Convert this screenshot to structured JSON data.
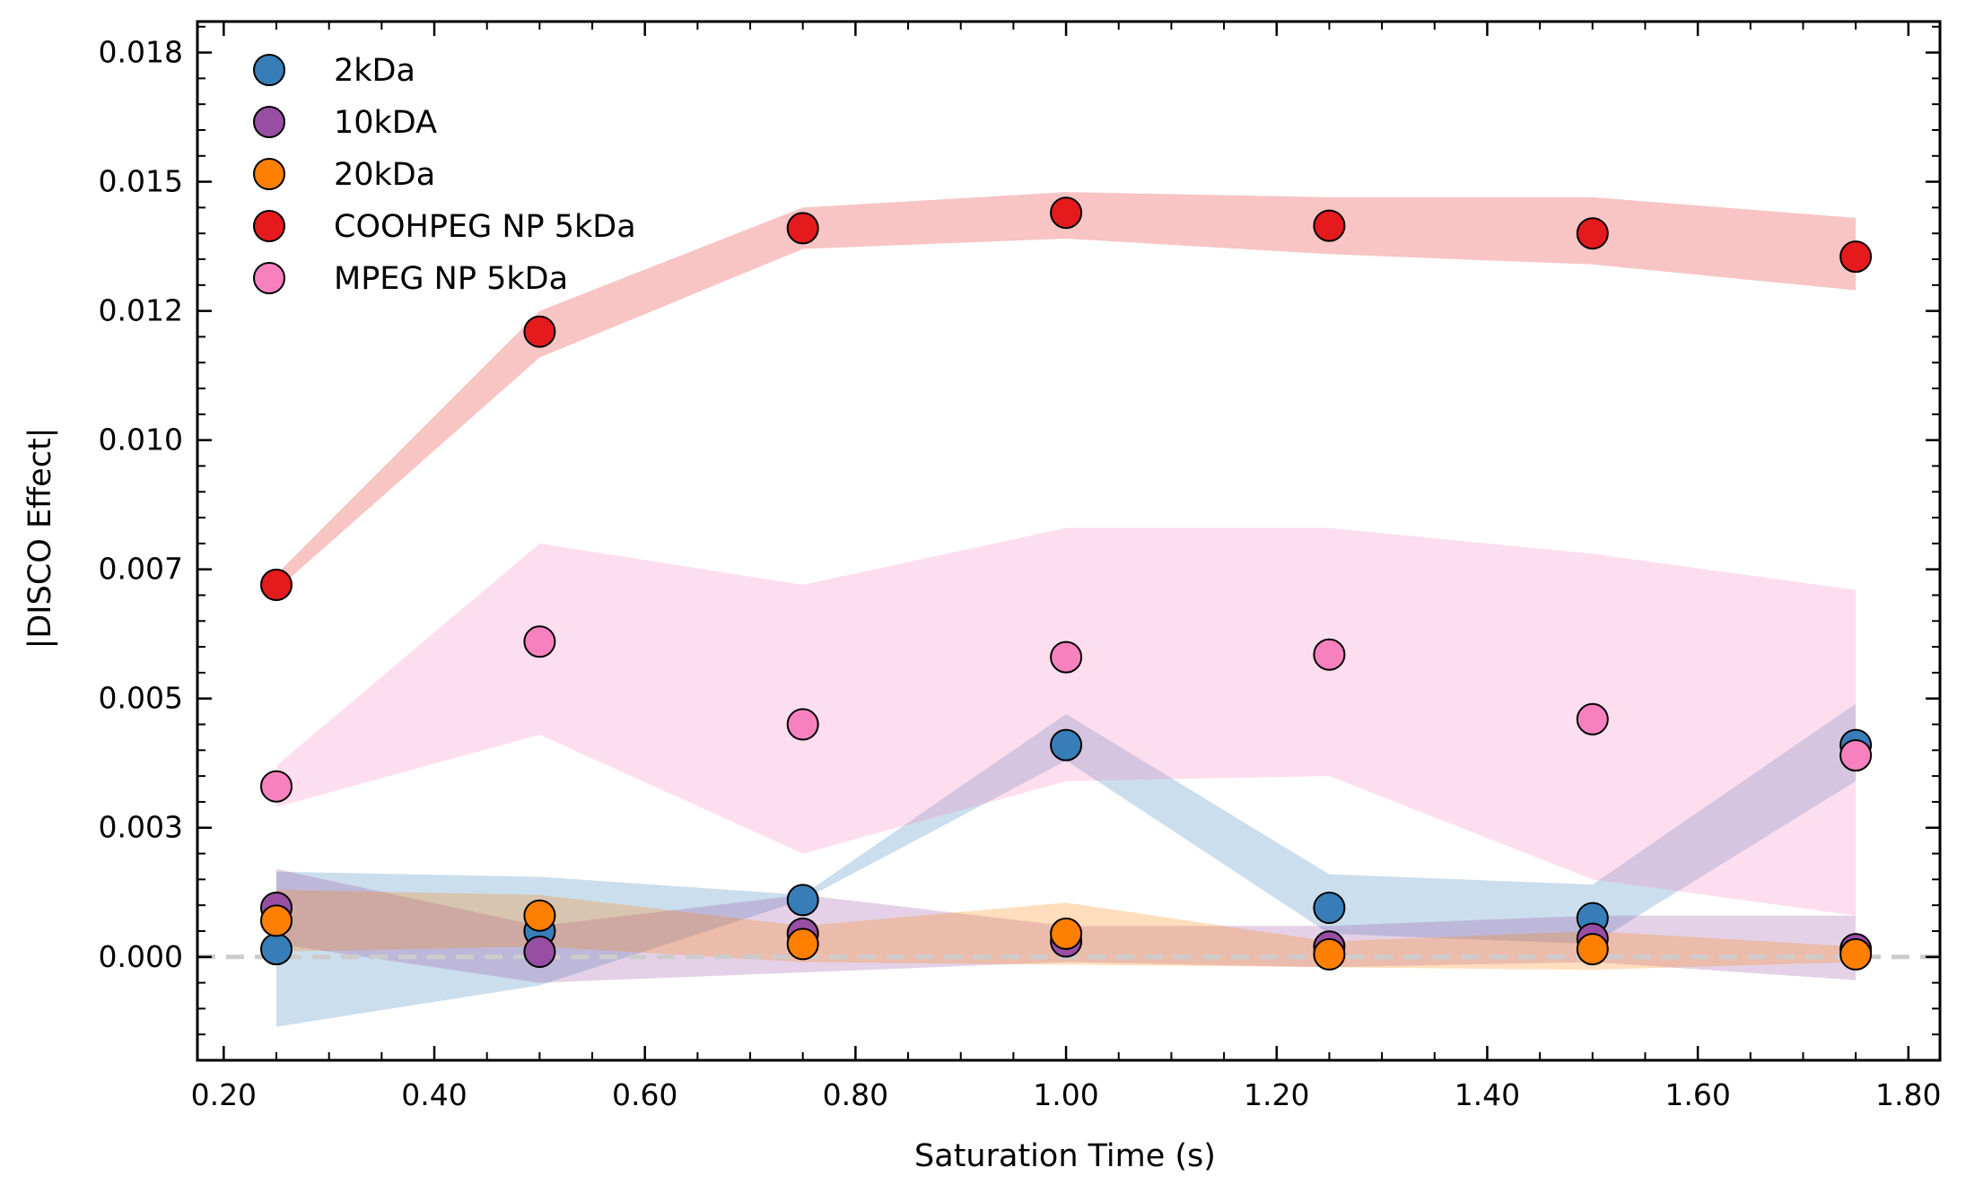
{
  "chart_data": {
    "type": "scatter",
    "title": "",
    "xlabel": "Saturation Time (s)",
    "ylabel": "|DISCO Effect|",
    "xlim": [
      0.175,
      1.83
    ],
    "ylim": [
      -0.002,
      0.0181
    ],
    "x_ticks": [
      0.2,
      0.4,
      0.6,
      0.8,
      1.0,
      1.2,
      1.4,
      1.6,
      1.8
    ],
    "x_tick_labels": [
      "0.20",
      "0.40",
      "0.60",
      "0.80",
      "1.00",
      "1.20",
      "1.40",
      "1.60",
      "1.80"
    ],
    "y_ticks": [
      0.0,
      0.0025,
      0.005,
      0.0075,
      0.01,
      0.0125,
      0.015,
      0.0175
    ],
    "y_tick_labels": [
      "0.000",
      "0.003",
      "0.005",
      "0.007",
      "0.010",
      "0.012",
      "0.015",
      "0.018"
    ],
    "grid": false,
    "legend_position": "top-left",
    "reference_line": {
      "y": 0.0,
      "style": "dashed",
      "color": "#cccccc"
    },
    "x": [
      0.25,
      0.5,
      0.75,
      1.0,
      1.25,
      1.5,
      1.75
    ],
    "series": [
      {
        "name": "2kDa",
        "color": "#377eb8",
        "values": [
          0.00015,
          0.0005,
          0.0011,
          0.0041,
          0.00095,
          0.00075,
          0.0041
        ],
        "band_lower": [
          -0.00135,
          -0.00055,
          0.0011,
          0.0038,
          0.00045,
          0.00025,
          0.0034
        ],
        "band_upper": [
          0.00165,
          0.00155,
          0.0012,
          0.0047,
          0.0016,
          0.0014,
          0.0049
        ]
      },
      {
        "name": "10kDA",
        "color": "#984ea3",
        "values": [
          0.00095,
          0.0001,
          0.00045,
          0.0003,
          0.0002,
          0.00035,
          0.00015
        ],
        "band_lower": [
          0.00025,
          -0.0005,
          -0.0003,
          -0.0001,
          -0.0002,
          -0.0001,
          -0.00045
        ],
        "band_upper": [
          0.0017,
          0.0006,
          0.0012,
          0.0006,
          0.0006,
          0.0008,
          0.0008
        ]
      },
      {
        "name": "20kDa",
        "color": "#ff7f00",
        "values": [
          0.0007,
          0.0008,
          0.00025,
          0.00045,
          5e-05,
          0.00015,
          5e-05
        ],
        "band_lower": [
          0.0001,
          0.0002,
          -0.0001,
          -0.00015,
          -0.0002,
          -0.00025,
          -0.0001
        ],
        "band_upper": [
          0.0013,
          0.0012,
          0.0006,
          0.00105,
          0.0003,
          0.0005,
          0.0002
        ]
      },
      {
        "name": "COOHPEG NP 5kDa",
        "color": "#e41a1c",
        "values": [
          0.0072,
          0.0121,
          0.0141,
          0.0144,
          0.01415,
          0.014,
          0.01355
        ],
        "band_lower": [
          0.0071,
          0.0116,
          0.0137,
          0.0139,
          0.0136,
          0.0134,
          0.0129
        ],
        "band_upper": [
          0.0074,
          0.0125,
          0.0145,
          0.0148,
          0.0147,
          0.0147,
          0.0143
        ]
      },
      {
        "name": "MPEG NP 5kDa",
        "color": "#f781bf",
        "values": [
          0.0033,
          0.0061,
          0.0045,
          0.0058,
          0.00585,
          0.0046,
          0.0039
        ],
        "band_lower": [
          0.0029,
          0.0043,
          0.002,
          0.0034,
          0.0035,
          0.0015,
          0.0008
        ],
        "band_upper": [
          0.0037,
          0.008,
          0.0072,
          0.0083,
          0.0083,
          0.0078,
          0.0071
        ]
      }
    ]
  }
}
